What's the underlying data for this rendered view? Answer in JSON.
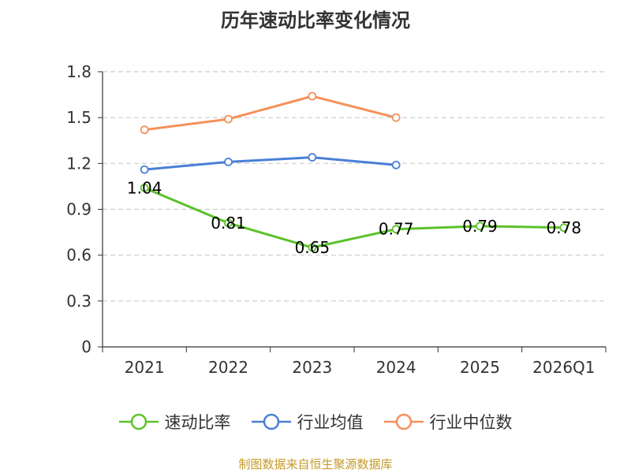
{
  "chart_data": {
    "type": "line",
    "title": "历年速动比率变化情况",
    "categories": [
      "2021",
      "2022",
      "2023",
      "2024",
      "2025",
      "2026Q1"
    ],
    "ylim": [
      0,
      1.8
    ],
    "yticks": [
      "0",
      "0.3",
      "0.6",
      "0.9",
      "1.2",
      "1.5",
      "1.8"
    ],
    "grid": true,
    "legend_position": "bottom",
    "series": [
      {
        "name": "速动比率",
        "color": "#5cc22a",
        "values": [
          1.04,
          0.81,
          0.65,
          0.77,
          0.79,
          0.78
        ],
        "labels": [
          "1.04",
          "0.81",
          "0.65",
          "0.77",
          "0.79",
          "0.78"
        ]
      },
      {
        "name": "行业均值",
        "color": "#4a7fd6",
        "values": [
          1.16,
          1.21,
          1.24,
          1.19,
          null,
          null
        ]
      },
      {
        "name": "行业中位数",
        "color": "#f5905a",
        "values": [
          1.42,
          1.49,
          1.64,
          1.5,
          null,
          null
        ]
      }
    ]
  },
  "source_note": "制图数据来自恒生聚源数据库"
}
